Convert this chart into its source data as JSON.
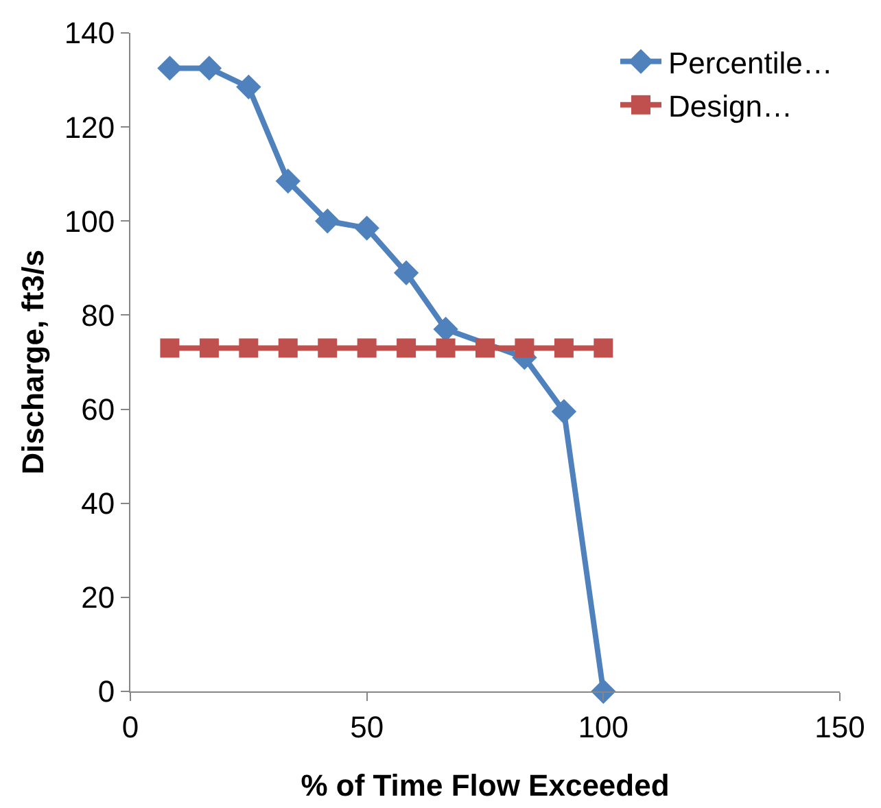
{
  "chart_data": {
    "type": "line",
    "xlabel": "% of Time Flow Exceeded",
    "ylabel": "Discharge, ft3/s",
    "series": [
      {
        "name": "Percentile…",
        "color": "#4f81bd",
        "marker": "diamond",
        "x": [
          8.33,
          16.67,
          25,
          33.33,
          41.67,
          50,
          58.33,
          66.67,
          75,
          83.33,
          91.67,
          100
        ],
        "values": [
          132.5,
          132.5,
          128.5,
          108.5,
          100,
          98.5,
          89,
          77,
          null,
          71,
          59.5,
          0
        ]
      },
      {
        "name": "Design…",
        "color": "#c0504d",
        "marker": "square",
        "x": [
          8.33,
          16.67,
          25,
          33.33,
          41.67,
          50,
          58.33,
          66.67,
          75,
          83.33,
          91.67,
          100
        ],
        "values": [
          73,
          73,
          73,
          73,
          73,
          73,
          73,
          73,
          73,
          73,
          73,
          73
        ]
      }
    ],
    "xlim": [
      0,
      150
    ],
    "xticks": [
      0,
      50,
      100,
      150
    ],
    "ylim": [
      0,
      140
    ],
    "yticks": [
      0,
      20,
      40,
      60,
      80,
      100,
      120,
      140
    ],
    "grid": false,
    "legend": "top right",
    "line_style": "solid"
  }
}
